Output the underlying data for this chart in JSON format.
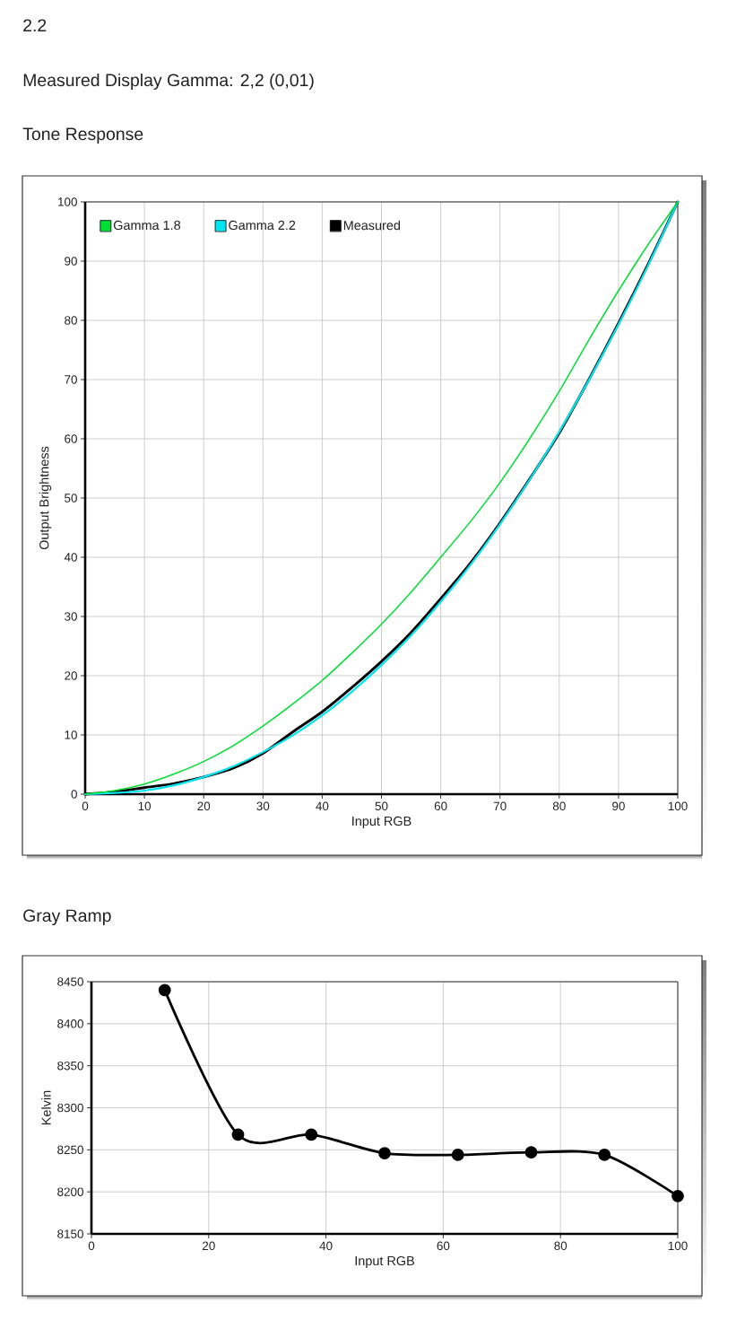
{
  "chart_data": [
    {
      "type": "line",
      "title": "Tone Response",
      "annotations": [
        "2.2",
        "Measured Display Gamma: 2,2 (0,01)"
      ],
      "xlabel": "Input RGB",
      "ylabel": "Output Brightness",
      "x": [
        0,
        5,
        10,
        15,
        20,
        25,
        30,
        35,
        40,
        45,
        50,
        55,
        60,
        65,
        70,
        75,
        80,
        85,
        90,
        95,
        100
      ],
      "series": [
        {
          "name": "Gamma 1.8",
          "color": "#00dd33",
          "values": [
            0,
            0.6,
            1.7,
            3.4,
            5.5,
            8.2,
            11.5,
            15.2,
            19.2,
            23.8,
            28.7,
            34.1,
            40,
            46,
            52.6,
            60,
            68,
            76.7,
            85,
            92.8,
            100
          ]
        },
        {
          "name": "Gamma 2.2",
          "color": "#00e5f0",
          "values": [
            0,
            0.2,
            0.6,
            1.5,
            2.9,
            4.7,
            7.1,
            9.9,
            13.3,
            17.3,
            21.8,
            26.8,
            32.5,
            38.7,
            45.6,
            53.1,
            61.2,
            69.9,
            79.3,
            89.3,
            100
          ]
        },
        {
          "name": "Measured",
          "color": "#000000",
          "values": [
            0,
            0.4,
            1.1,
            1.8,
            2.9,
            4.4,
            6.9,
            10.5,
            13.9,
            18.0,
            22.4,
            27.3,
            33.0,
            39.0,
            45.8,
            53.2,
            61.0,
            70.0,
            79.5,
            89.5,
            100
          ]
        }
      ],
      "xlim": [
        0,
        100
      ],
      "ylim": [
        0,
        100
      ],
      "xticks": [
        0,
        10,
        20,
        30,
        40,
        50,
        60,
        70,
        80,
        90,
        100
      ],
      "yticks": [
        0,
        10,
        20,
        30,
        40,
        50,
        60,
        70,
        80,
        90,
        100
      ],
      "grid": true,
      "legend": "top left",
      "line_style": "solid"
    },
    {
      "type": "line",
      "title": "Gray Ramp",
      "xlabel": "Input RGB",
      "ylabel": "Kelvin",
      "x": [
        12.5,
        25,
        37.5,
        50,
        62.5,
        75,
        87.5,
        100
      ],
      "series": [
        {
          "color": "#000000",
          "values": [
            8440,
            8268,
            8268,
            8246,
            8244,
            8247,
            8244,
            8195
          ]
        }
      ],
      "xlim": [
        0,
        100
      ],
      "ylim": [
        8150,
        8450
      ],
      "xticks": [
        0,
        20,
        40,
        60,
        80,
        100
      ],
      "yticks": [
        8150,
        8200,
        8250,
        8300,
        8350,
        8400,
        8450
      ],
      "grid": true,
      "marker": "circle",
      "line_style": "solid"
    }
  ]
}
